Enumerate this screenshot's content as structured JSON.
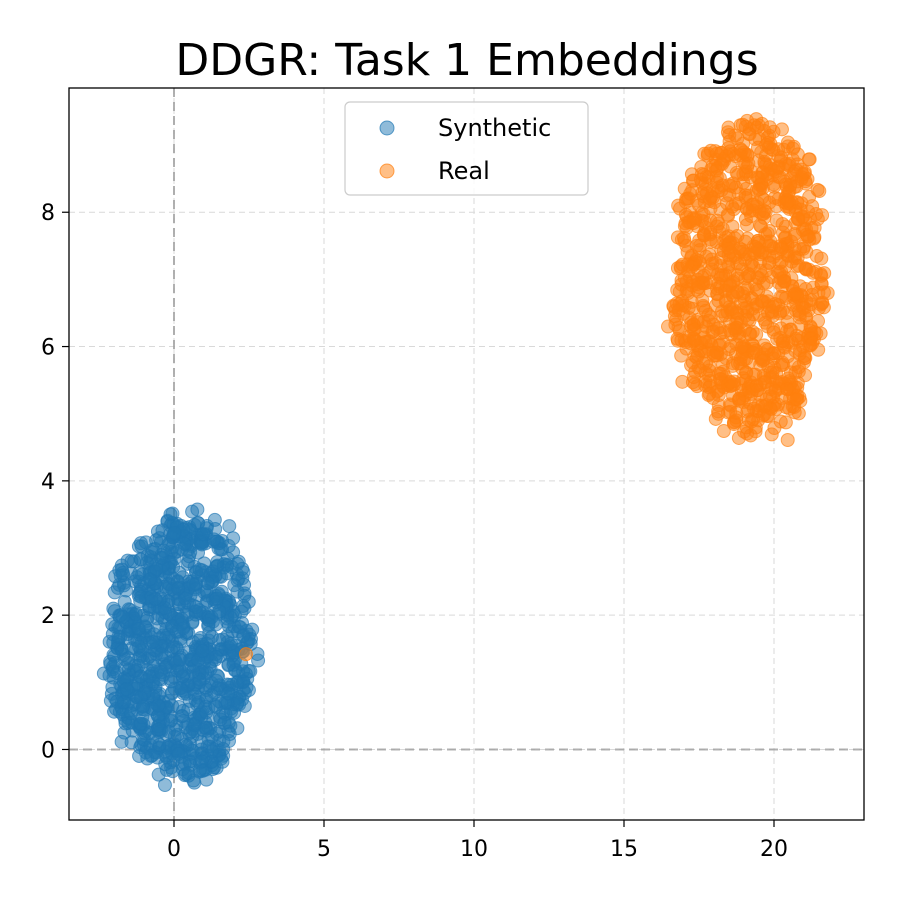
{
  "chart_data": {
    "type": "scatter",
    "title": "DDGR: Task 1 Embeddings",
    "xlabel": "",
    "ylabel": "",
    "xlim": [
      -3.5,
      23
    ],
    "ylim": [
      -1.05,
      9.85
    ],
    "x_ticks": [
      "0",
      "5",
      "10",
      "15",
      "20"
    ],
    "y_ticks": [
      "0",
      "2",
      "4",
      "6",
      "8"
    ],
    "grid": true,
    "reference_lines": {
      "x": 0,
      "y": 0
    },
    "legend_position": "upper-center",
    "series": [
      {
        "name": "Synthetic",
        "color": "#1f77b4",
        "cluster": {
          "x_range": [
            -2.3,
            2.7
          ],
          "y_range": [
            -0.55,
            3.55
          ],
          "approx_points": 1000
        }
      },
      {
        "name": "Real",
        "color": "#ff7f0e",
        "cluster": {
          "x_range": [
            16.5,
            21.8
          ],
          "y_range": [
            4.5,
            9.45
          ],
          "approx_points": 1000
        },
        "outliers": [
          {
            "x": 2.4,
            "y": 1.42
          }
        ]
      }
    ]
  }
}
